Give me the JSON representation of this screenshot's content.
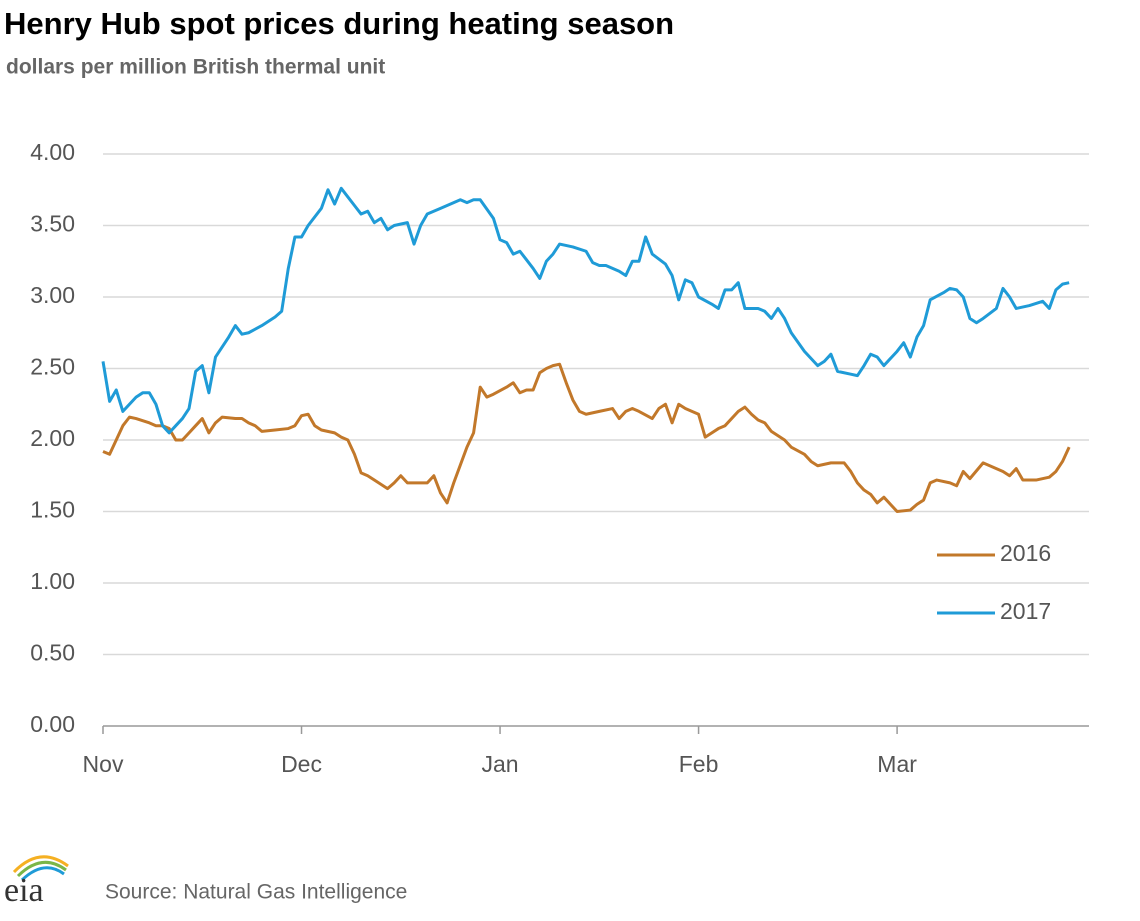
{
  "chart_data": {
    "type": "line",
    "title": "Henry Hub spot prices during heating season",
    "subtitle": "dollars per million British thermal unit",
    "source": "Source: Natural Gas Intelligence",
    "logo": "eia",
    "xlim": [
      0,
      149
    ],
    "xticks": [
      {
        "value": 0,
        "label": "Nov"
      },
      {
        "value": 30,
        "label": "Dec"
      },
      {
        "value": 60,
        "label": "Jan"
      },
      {
        "value": 90,
        "label": "Feb"
      },
      {
        "value": 120,
        "label": "Mar"
      }
    ],
    "ylim": [
      0,
      4
    ],
    "yticks": [
      {
        "value": 0,
        "label": "0.00"
      },
      {
        "value": 0.5,
        "label": "0.50"
      },
      {
        "value": 1,
        "label": "1.00"
      },
      {
        "value": 1.5,
        "label": "1.50"
      },
      {
        "value": 2,
        "label": "2.00"
      },
      {
        "value": 2.5,
        "label": "2.50"
      },
      {
        "value": 3,
        "label": "3.00"
      },
      {
        "value": 3.5,
        "label": "3.50"
      },
      {
        "value": 4,
        "label": "4.00"
      }
    ],
    "grid": true,
    "legend": "lower right",
    "series": [
      {
        "name": "2016",
        "color": "#c2782a",
        "x": [
          0,
          1,
          2,
          3,
          4,
          5,
          7,
          8,
          9,
          10,
          11,
          12,
          13,
          14,
          15,
          16,
          17,
          18,
          20,
          21,
          22,
          23,
          24,
          26,
          28,
          29,
          30,
          31,
          32,
          33,
          35,
          36,
          37,
          38,
          39,
          40,
          41,
          43,
          44,
          45,
          46,
          47,
          49,
          50,
          51,
          52,
          53,
          55,
          56,
          57,
          58,
          59,
          61,
          62,
          63,
          64,
          65,
          66,
          67,
          68,
          69,
          70,
          71,
          72,
          73,
          75,
          77,
          78,
          79,
          80,
          81,
          83,
          84,
          85,
          86,
          87,
          88,
          90,
          91,
          92,
          93,
          94,
          96,
          97,
          98,
          99,
          100,
          101,
          103,
          104,
          106,
          107,
          108,
          110,
          112,
          113,
          114,
          115,
          116,
          117,
          118,
          119,
          120,
          122,
          123,
          124,
          125,
          126,
          128,
          129,
          130,
          131,
          133,
          134,
          136,
          137,
          138,
          139,
          141,
          143,
          144,
          145,
          146
        ],
        "values": [
          1.92,
          1.9,
          2.0,
          2.1,
          2.16,
          2.15,
          2.12,
          2.1,
          2.1,
          2.08,
          2.0,
          2.0,
          2.05,
          2.1,
          2.15,
          2.05,
          2.12,
          2.16,
          2.15,
          2.15,
          2.12,
          2.1,
          2.06,
          2.07,
          2.08,
          2.1,
          2.17,
          2.18,
          2.1,
          2.07,
          2.05,
          2.02,
          2.0,
          1.9,
          1.77,
          1.75,
          1.72,
          1.66,
          1.7,
          1.75,
          1.7,
          1.7,
          1.7,
          1.75,
          1.63,
          1.56,
          1.7,
          1.95,
          2.05,
          2.37,
          2.3,
          2.32,
          2.37,
          2.4,
          2.33,
          2.35,
          2.35,
          2.47,
          2.5,
          2.52,
          2.53,
          2.4,
          2.28,
          2.2,
          2.18,
          2.2,
          2.22,
          2.15,
          2.2,
          2.22,
          2.2,
          2.15,
          2.22,
          2.25,
          2.12,
          2.25,
          2.22,
          2.18,
          2.02,
          2.05,
          2.08,
          2.1,
          2.2,
          2.23,
          2.18,
          2.14,
          2.12,
          2.06,
          2.0,
          1.95,
          1.9,
          1.85,
          1.82,
          1.84,
          1.84,
          1.78,
          1.7,
          1.65,
          1.62,
          1.56,
          1.6,
          1.55,
          1.5,
          1.51,
          1.55,
          1.58,
          1.7,
          1.72,
          1.7,
          1.68,
          1.78,
          1.73,
          1.84,
          1.82,
          1.78,
          1.75,
          1.8,
          1.72,
          1.72,
          1.74,
          1.78,
          1.85,
          1.95
        ]
      },
      {
        "name": "2017",
        "color": "#1f9bd7",
        "x": [
          0,
          1,
          2,
          3,
          4,
          5,
          6,
          7,
          8,
          9,
          10,
          11,
          12,
          13,
          14,
          15,
          16,
          17,
          18,
          19,
          20,
          21,
          22,
          24,
          26,
          27,
          28,
          29,
          30,
          31,
          33,
          34,
          35,
          36,
          37,
          38,
          39,
          40,
          41,
          42,
          43,
          44,
          46,
          47,
          48,
          49,
          51,
          53,
          54,
          55,
          56,
          57,
          59,
          60,
          61,
          62,
          63,
          64,
          65,
          66,
          67,
          68,
          69,
          71,
          73,
          74,
          75,
          76,
          78,
          79,
          80,
          81,
          82,
          83,
          85,
          86,
          87,
          88,
          89,
          90,
          92,
          93,
          94,
          95,
          96,
          97,
          99,
          100,
          101,
          102,
          103,
          104,
          106,
          108,
          109,
          110,
          111,
          113,
          114,
          115,
          116,
          117,
          118,
          120,
          121,
          122,
          123,
          124,
          125,
          127,
          128,
          129,
          130,
          131,
          132,
          133,
          135,
          136,
          137,
          138,
          140,
          142,
          143,
          144,
          145,
          146
        ],
        "values": [
          2.55,
          2.27,
          2.35,
          2.2,
          2.25,
          2.3,
          2.33,
          2.33,
          2.25,
          2.1,
          2.05,
          2.1,
          2.15,
          2.22,
          2.48,
          2.52,
          2.33,
          2.58,
          2.65,
          2.72,
          2.8,
          2.74,
          2.75,
          2.8,
          2.86,
          2.9,
          3.2,
          3.42,
          3.42,
          3.5,
          3.62,
          3.75,
          3.65,
          3.76,
          3.7,
          3.64,
          3.58,
          3.6,
          3.52,
          3.55,
          3.47,
          3.5,
          3.52,
          3.37,
          3.5,
          3.58,
          3.62,
          3.66,
          3.68,
          3.66,
          3.68,
          3.68,
          3.55,
          3.4,
          3.38,
          3.3,
          3.32,
          3.26,
          3.2,
          3.13,
          3.25,
          3.3,
          3.37,
          3.35,
          3.32,
          3.24,
          3.22,
          3.22,
          3.18,
          3.15,
          3.25,
          3.25,
          3.42,
          3.3,
          3.23,
          3.15,
          2.98,
          3.12,
          3.1,
          3.0,
          2.95,
          2.92,
          3.05,
          3.05,
          3.1,
          2.92,
          2.92,
          2.9,
          2.85,
          2.92,
          2.85,
          2.75,
          2.62,
          2.52,
          2.55,
          2.6,
          2.48,
          2.46,
          2.45,
          2.52,
          2.6,
          2.58,
          2.52,
          2.62,
          2.68,
          2.58,
          2.72,
          2.8,
          2.98,
          3.03,
          3.06,
          3.05,
          3.0,
          2.85,
          2.82,
          2.85,
          2.92,
          3.06,
          3.0,
          2.92,
          2.94,
          2.97,
          2.92,
          3.05,
          3.09,
          3.1
        ]
      }
    ]
  }
}
